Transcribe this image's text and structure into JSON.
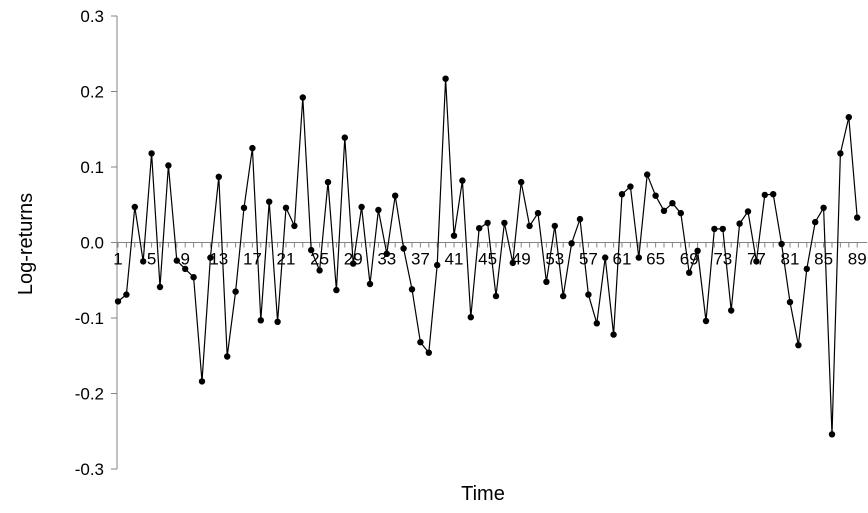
{
  "chart_data": {
    "type": "line",
    "title": "",
    "xlabel": "Time",
    "ylabel": "Log-returns",
    "ylim": [
      -0.3,
      0.3
    ],
    "yticks": [
      "-0.3",
      "-0.2",
      "-0.1",
      "0.0",
      "0.1",
      "0.2",
      "0.3"
    ],
    "x": [
      1,
      2,
      3,
      4,
      5,
      6,
      7,
      8,
      9,
      10,
      11,
      12,
      13,
      14,
      15,
      16,
      17,
      18,
      19,
      20,
      21,
      22,
      23,
      24,
      25,
      26,
      27,
      28,
      29,
      30,
      31,
      32,
      33,
      34,
      35,
      36,
      37,
      38,
      39,
      40,
      41,
      42,
      43,
      44,
      45,
      46,
      47,
      48,
      49,
      50,
      51,
      52,
      53,
      54,
      55,
      56,
      57,
      58,
      59,
      60,
      61,
      62,
      63,
      64,
      65,
      66,
      67,
      68,
      69,
      70,
      71,
      72,
      73,
      74,
      75,
      76,
      77,
      78,
      79,
      80,
      81,
      82,
      83,
      84,
      85,
      86,
      87,
      88,
      89
    ],
    "xtick_labels": [
      "1",
      "5",
      "9",
      "13",
      "17",
      "21",
      "25",
      "29",
      "33",
      "37",
      "41",
      "45",
      "49",
      "53",
      "57",
      "61",
      "65",
      "69",
      "73",
      "77",
      "81",
      "85",
      "89"
    ],
    "grid": false,
    "legend": "none",
    "series": [
      {
        "values": [
          -0.078,
          -0.069,
          0.047,
          -0.025,
          0.118,
          -0.059,
          0.102,
          -0.024,
          -0.035,
          -0.046,
          -0.184,
          -0.02,
          0.087,
          -0.151,
          -0.065,
          0.046,
          0.125,
          -0.103,
          0.054,
          -0.105,
          0.046,
          0.022,
          0.192,
          -0.01,
          -0.037,
          0.08,
          -0.063,
          0.139,
          -0.028,
          0.047,
          -0.055,
          0.043,
          -0.015,
          0.062,
          -0.008,
          -0.062,
          -0.132,
          -0.146,
          -0.03,
          0.217,
          0.009,
          0.082,
          -0.099,
          0.019,
          0.026,
          -0.071,
          0.026,
          -0.027,
          0.08,
          0.022,
          0.039,
          -0.052,
          0.022,
          -0.071,
          -0.001,
          0.031,
          -0.069,
          -0.107,
          -0.02,
          -0.122,
          0.064,
          0.074,
          -0.02,
          0.09,
          0.062,
          0.042,
          0.052,
          0.039,
          -0.04,
          -0.011,
          -0.104,
          0.018,
          0.018,
          -0.09,
          0.025,
          0.041,
          -0.025,
          0.063,
          0.064,
          -0.002,
          -0.079,
          -0.136,
          -0.035,
          0.027,
          0.046,
          -0.254,
          0.118,
          0.166,
          0.033
        ],
        "color": "#000000"
      }
    ]
  }
}
